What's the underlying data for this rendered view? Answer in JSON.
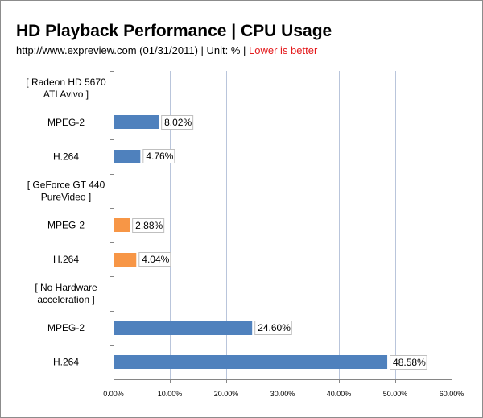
{
  "header": {
    "title": "HD Playback Performance | CPU Usage",
    "subtitle_main": "http://www.expreview.com  (01/31/2011) | Unit: % | ",
    "subtitle_note": "Lower is better"
  },
  "colors": {
    "radeon": "#4f81bd",
    "geforce": "#f79646",
    "no_hw": "#4f81bd",
    "gridline": "#b9c5db",
    "subtitle_note": "#e41a1c"
  },
  "chart_data": {
    "type": "bar",
    "orientation": "horizontal",
    "title": "HD Playback Performance | CPU Usage",
    "xlabel": "",
    "ylabel": "",
    "xlim": [
      0,
      60
    ],
    "x_ticks": [
      0,
      10,
      20,
      30,
      40,
      50,
      60
    ],
    "x_tick_labels": [
      "0.00%",
      "10.00%",
      "20.00%",
      "30.00%",
      "40.00%",
      "50.00%",
      "60.00%"
    ],
    "grid": true,
    "rows": [
      {
        "label": [
          "[ Radeon HD 5670",
          "ATI Avivo ]"
        ],
        "value": null,
        "value_label": "",
        "group": "radeon"
      },
      {
        "label": [
          "MPEG-2"
        ],
        "value": 8.02,
        "value_label": "8.02%",
        "group": "radeon"
      },
      {
        "label": [
          "H.264"
        ],
        "value": 4.76,
        "value_label": "4.76%",
        "group": "radeon"
      },
      {
        "label": [
          "[ GeForce GT 440",
          "PureVideo ]"
        ],
        "value": null,
        "value_label": "",
        "group": "geforce"
      },
      {
        "label": [
          "MPEG-2"
        ],
        "value": 2.88,
        "value_label": "2.88%",
        "group": "geforce"
      },
      {
        "label": [
          "H.264"
        ],
        "value": 4.04,
        "value_label": "4.04%",
        "group": "geforce"
      },
      {
        "label": [
          "[ No Hardware",
          "acceleration ]"
        ],
        "value": null,
        "value_label": "",
        "group": "no_hw"
      },
      {
        "label": [
          "MPEG-2"
        ],
        "value": 24.6,
        "value_label": "24.60%",
        "group": "no_hw"
      },
      {
        "label": [
          "H.264"
        ],
        "value": 48.58,
        "value_label": "48.58%",
        "group": "no_hw"
      }
    ]
  }
}
